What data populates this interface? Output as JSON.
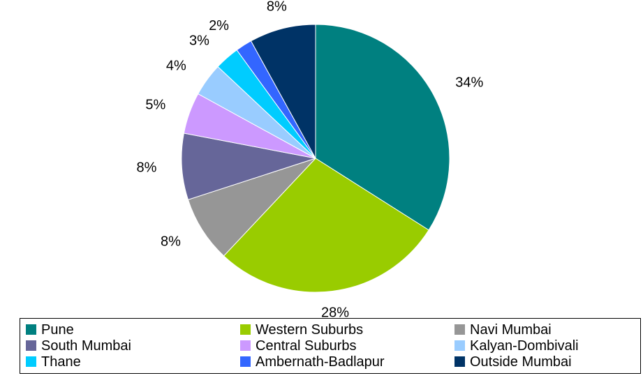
{
  "chart_data": {
    "type": "pie",
    "title": "",
    "slices": [
      {
        "label": "Pune",
        "value": 34,
        "display": "34%",
        "color": "#008080"
      },
      {
        "label": "Western Suburbs",
        "value": 28,
        "display": "28%",
        "color": "#99CC00"
      },
      {
        "label": "Navi Mumbai",
        "value": 8,
        "display": "8%",
        "color": "#969696"
      },
      {
        "label": "South Mumbai",
        "value": 8,
        "display": "8%",
        "color": "#666699"
      },
      {
        "label": "Central Suburbs",
        "value": 5,
        "display": "5%",
        "color": "#CC99FF"
      },
      {
        "label": "Kalyan-Dombivali",
        "value": 4,
        "display": "4%",
        "color": "#99CCFF"
      },
      {
        "label": "Thane",
        "value": 3,
        "display": "3%",
        "color": "#00CCFF"
      },
      {
        "label": "Ambernath-Badlapur",
        "value": 2,
        "display": "2%",
        "color": "#3366FF"
      },
      {
        "label": "Outside Mumbai",
        "value": 8,
        "display": "8%",
        "color": "#003366"
      }
    ],
    "legend_position": "bottom",
    "start": "12 o'clock",
    "direction": "clockwise"
  }
}
